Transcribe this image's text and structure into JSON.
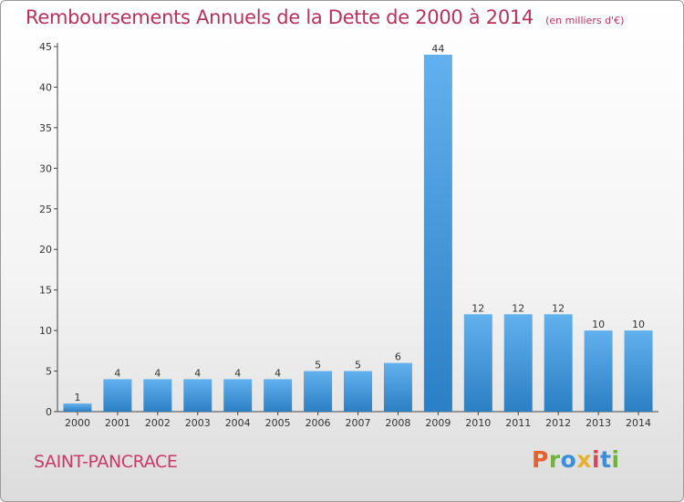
{
  "chart_data": {
    "type": "bar",
    "title": "Remboursements Annuels de la Dette de 2000 à 2014",
    "subtitle": "(en milliers d'€)",
    "xlabel": "",
    "ylabel": "",
    "categories": [
      "2000",
      "2001",
      "2002",
      "2003",
      "2004",
      "2005",
      "2006",
      "2007",
      "2008",
      "2009",
      "2010",
      "2011",
      "2012",
      "2013",
      "2014"
    ],
    "values": [
      1,
      4,
      4,
      4,
      4,
      4,
      5,
      5,
      6,
      44,
      12,
      12,
      12,
      10,
      10
    ],
    "ylim": [
      0,
      45
    ],
    "yticks": [
      0,
      5,
      10,
      15,
      20,
      25,
      30,
      35,
      40,
      45
    ],
    "grid": false,
    "legend": "none",
    "bar_color": "#3d97e0",
    "title_color": "#b5325b"
  },
  "footer": {
    "commune": "SAINT-PANCRACE",
    "logo_text": "Proxiti"
  }
}
